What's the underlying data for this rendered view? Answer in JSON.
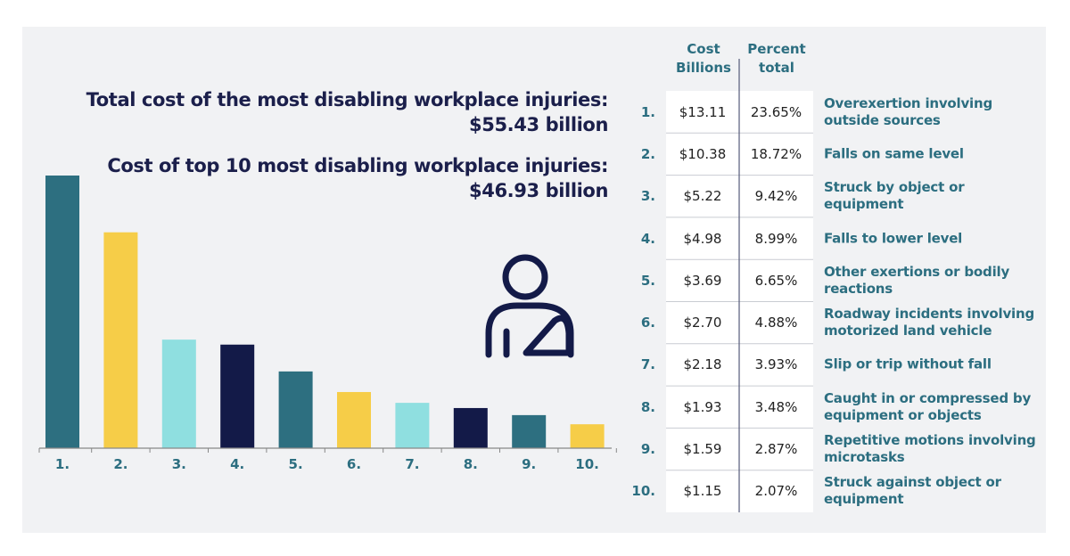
{
  "chart_data": {
    "type": "bar",
    "annotations": [
      "Total cost of the most disabling workplace injuries:",
      "$55.43 billion",
      "Cost of top 10 most disabling workplace injuries:",
      "$46.93 billion"
    ],
    "categories": [
      "1.",
      "2.",
      "3.",
      "4.",
      "5.",
      "6.",
      "7.",
      "8.",
      "9.",
      "10."
    ],
    "values": [
      13.11,
      10.38,
      5.22,
      4.98,
      3.69,
      2.7,
      2.18,
      1.93,
      1.59,
      1.15
    ],
    "value_labels": [
      "$13.11",
      "$10.38",
      "$5.22",
      "$4.98",
      "$3.69",
      "$2.70",
      "$2.18",
      "$1.93",
      "$1.59",
      "$1.15"
    ],
    "colors": [
      "#2d6f80",
      "#f6cd48",
      "#8fdfe0",
      "#131a48",
      "#2d6f80",
      "#f6cd48",
      "#8fdfe0",
      "#131a48",
      "#2d6f80",
      "#f6cd48"
    ]
  },
  "table": {
    "headers": [
      "Cost Billions",
      "Percent total"
    ],
    "percents": [
      "23.65%",
      "18.72%",
      "9.42%",
      "8.99%",
      "6.65%",
      "4.88%",
      "3.93%",
      "3.48%",
      "2.87%",
      "2.07%"
    ],
    "descriptions": [
      "Overexertion involving outside sources",
      "Falls on same level",
      "Struck by object or equipment",
      "Falls to lower level",
      "Other exertions or bodily reactions",
      "Roadway incidents involving motorized land vehicle",
      "Slip or trip without fall",
      "Caught in or compressed by equipment or objects",
      "Repetitive motions involving microtasks",
      "Struck against object or equipment"
    ]
  }
}
